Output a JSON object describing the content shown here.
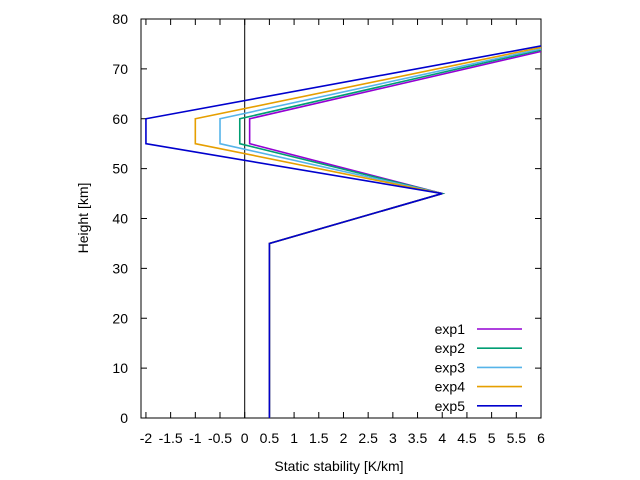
{
  "chart_data": {
    "type": "line",
    "title": "",
    "xlabel": "Static stability [K/km]",
    "ylabel": "Height [km]",
    "xlim": [
      -2.1,
      6
    ],
    "ylim": [
      0,
      80
    ],
    "xticks": [
      -2,
      -1.5,
      -1,
      -0.5,
      0,
      0.5,
      1,
      1.5,
      2,
      2.5,
      3,
      3.5,
      4,
      4.5,
      5,
      5.5,
      6
    ],
    "xtick_labels": [
      "-2",
      "-1.5",
      "-1",
      "-0.5",
      "0",
      "0.5",
      "1",
      "1.5",
      "2",
      "2.5",
      "3",
      "3.5",
      "4",
      "4.5",
      "5",
      "5.5",
      "6"
    ],
    "yticks": [
      0,
      10,
      20,
      30,
      40,
      50,
      60,
      70,
      80
    ],
    "ytick_labels": [
      "0",
      "10",
      "20",
      "30",
      "40",
      "50",
      "60",
      "70",
      "80"
    ],
    "zero_line": 0,
    "grid": false,
    "legend_position": "bottom-right",
    "series": [
      {
        "name": "exp1",
        "color": "#9400d3",
        "x": [
          0.5,
          0.5,
          4.0,
          0.1,
          0.1,
          6.0
        ],
        "y": [
          0,
          35,
          45,
          55,
          60,
          73.5
        ]
      },
      {
        "name": "exp2",
        "color": "#009e73",
        "x": [
          0.5,
          0.5,
          4.0,
          -0.1,
          -0.1,
          6.0
        ],
        "y": [
          0,
          35,
          45,
          55,
          60,
          73.8
        ]
      },
      {
        "name": "exp3",
        "color": "#56b4e9",
        "x": [
          0.5,
          0.5,
          4.0,
          -0.5,
          -0.5,
          6.0
        ],
        "y": [
          0,
          35,
          45,
          55,
          60,
          74.0
        ]
      },
      {
        "name": "exp4",
        "color": "#e69f00",
        "x": [
          0.5,
          0.5,
          4.0,
          -1.0,
          -1.0,
          6.0
        ],
        "y": [
          0,
          35,
          45,
          55,
          60,
          74.3
        ]
      },
      {
        "name": "exp5",
        "color": "#0000cd",
        "x": [
          0.5,
          0.5,
          4.0,
          -2.0,
          -2.0,
          6.0
        ],
        "y": [
          0,
          35,
          45,
          55,
          60,
          74.6
        ]
      }
    ]
  }
}
